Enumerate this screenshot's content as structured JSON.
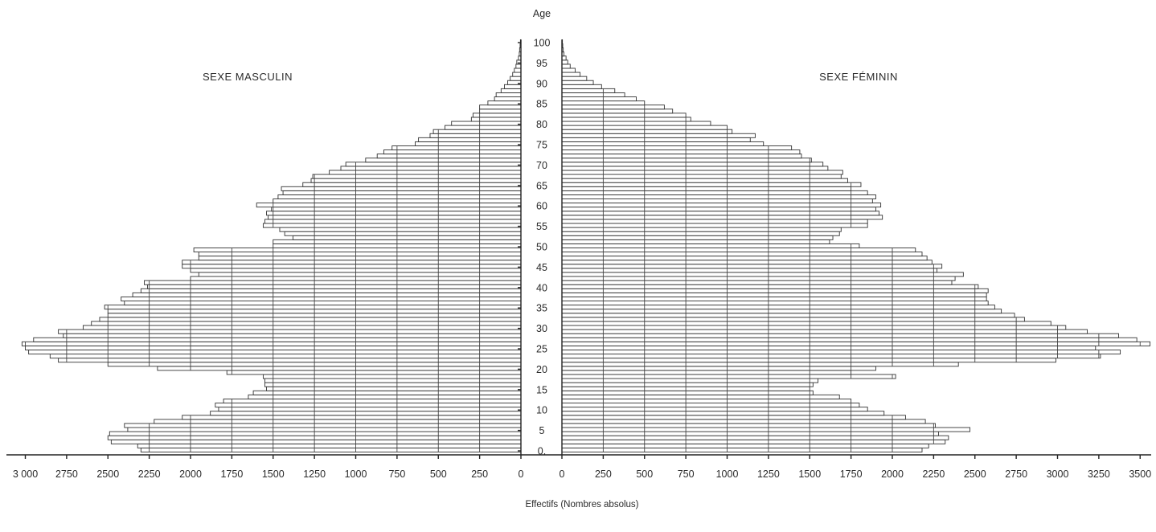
{
  "chart_data": {
    "type": "bar",
    "subtype": "population-pyramid",
    "y_axis_title": "Age",
    "x_axis_title": "Effectifs (Nombres absolus)",
    "left_title": "SEXE MASCULIN",
    "right_title": "SEXE FÉMININ",
    "age_ticks": [
      0,
      5,
      10,
      15,
      20,
      25,
      30,
      35,
      40,
      45,
      50,
      55,
      60,
      65,
      70,
      75,
      80,
      85,
      90,
      95,
      100
    ],
    "age_tick_labels": [
      "0.",
      "5",
      "10",
      "15",
      "20",
      "25",
      "30",
      "35",
      "40",
      "45",
      "50",
      "55",
      "60",
      "65",
      "70",
      "75",
      "80",
      "85",
      "90",
      "95",
      "100"
    ],
    "male_ticks": [
      3000,
      2750,
      2500,
      2250,
      2000,
      1750,
      1500,
      1250,
      1000,
      750,
      500,
      250,
      0
    ],
    "male_tick_labels": [
      "3 000",
      "2750",
      "2500",
      "2250",
      "2000",
      "1750",
      "1500",
      "1250",
      "1000",
      "750",
      "500",
      "250",
      "0"
    ],
    "female_ticks": [
      0,
      250,
      500,
      750,
      1000,
      1250,
      1500,
      1750,
      2000,
      2250,
      2500,
      2750,
      3000,
      3250,
      3500
    ],
    "female_tick_labels": [
      "0",
      "250",
      "500",
      "750",
      "1000",
      "1250",
      "1500",
      "1750",
      "2000",
      "2250",
      "2500",
      "2750",
      "3000",
      "3250",
      "3500"
    ],
    "xlim": [
      0,
      3500
    ],
    "ages": [
      0,
      1,
      2,
      3,
      4,
      5,
      6,
      7,
      8,
      9,
      10,
      11,
      12,
      13,
      14,
      15,
      16,
      17,
      18,
      19,
      20,
      21,
      22,
      23,
      24,
      25,
      26,
      27,
      28,
      29,
      30,
      31,
      32,
      33,
      34,
      35,
      36,
      37,
      38,
      39,
      40,
      41,
      42,
      43,
      44,
      45,
      46,
      47,
      48,
      49,
      50,
      51,
      52,
      53,
      54,
      55,
      56,
      57,
      58,
      59,
      60,
      61,
      62,
      63,
      64,
      65,
      66,
      67,
      68,
      69,
      70,
      71,
      72,
      73,
      74,
      75,
      76,
      77,
      78,
      79,
      80,
      81,
      82,
      83,
      84,
      85,
      86,
      87,
      88,
      89,
      90,
      91,
      92,
      93,
      94,
      95,
      96,
      97,
      98,
      99,
      100
    ],
    "series": [
      {
        "name": "SEXE MASCULIN",
        "values": [
          2300,
          2320,
          2480,
          2500,
          2490,
          2380,
          2400,
          2220,
          2050,
          1880,
          1830,
          1850,
          1800,
          1650,
          1620,
          1540,
          1550,
          1550,
          1560,
          1780,
          2200,
          2500,
          2800,
          2850,
          2980,
          3000,
          3020,
          2950,
          2770,
          2800,
          2650,
          2600,
          2550,
          2500,
          2500,
          2520,
          2400,
          2420,
          2350,
          2300,
          2260,
          2280,
          2000,
          1950,
          2000,
          2050,
          2050,
          1950,
          1950,
          1980,
          1500,
          1500,
          1380,
          1430,
          1460,
          1560,
          1550,
          1530,
          1540,
          1510,
          1600,
          1500,
          1470,
          1440,
          1450,
          1320,
          1270,
          1260,
          1160,
          1090,
          1060,
          940,
          870,
          830,
          780,
          640,
          620,
          550,
          530,
          460,
          420,
          300,
          290,
          250,
          250,
          200,
          160,
          150,
          120,
          100,
          80,
          65,
          50,
          40,
          30,
          25,
          15,
          10,
          8,
          5,
          3
        ]
      },
      {
        "name": "SEXE FÉMININ",
        "values": [
          2180,
          2220,
          2320,
          2340,
          2280,
          2470,
          2260,
          2200,
          2080,
          1950,
          1850,
          1800,
          1750,
          1680,
          1520,
          1500,
          1520,
          1550,
          2020,
          1750,
          1900,
          2400,
          2990,
          3260,
          3380,
          3230,
          3560,
          3480,
          3370,
          3180,
          3050,
          2960,
          2800,
          2740,
          2660,
          2620,
          2580,
          2570,
          2570,
          2580,
          2520,
          2360,
          2380,
          2430,
          2270,
          2300,
          2240,
          2210,
          2180,
          2140,
          1800,
          1620,
          1640,
          1680,
          1690,
          1850,
          1850,
          1940,
          1920,
          1900,
          1930,
          1880,
          1900,
          1850,
          1750,
          1810,
          1730,
          1690,
          1700,
          1610,
          1580,
          1510,
          1450,
          1440,
          1390,
          1220,
          1140,
          1170,
          1030,
          1000,
          900,
          780,
          750,
          670,
          620,
          500,
          450,
          380,
          320,
          240,
          190,
          150,
          110,
          80,
          50,
          35,
          25,
          12,
          8,
          5,
          3
        ]
      }
    ]
  }
}
